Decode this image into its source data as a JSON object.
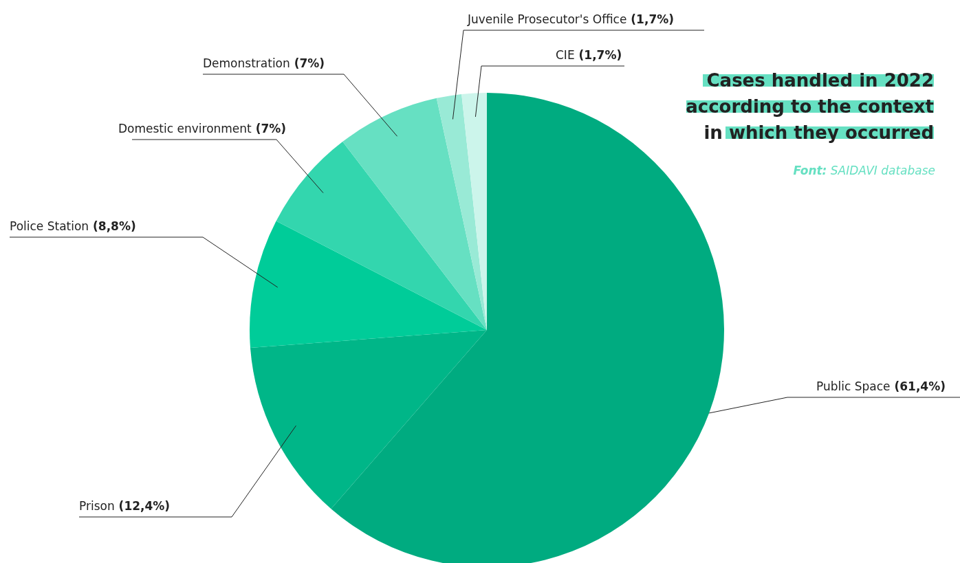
{
  "chart_data": {
    "type": "pie",
    "title": "Cases handled in 2022\naccording to the context\nin which they occurred",
    "categories": [
      "Public Space",
      "Prison",
      "Police Station",
      "Domestic environment",
      "Demonstration",
      "Juvenile Prosecutor's Office",
      "CIE"
    ],
    "values": [
      61.4,
      12.4,
      8.8,
      7,
      7,
      1.7,
      1.7
    ],
    "value_labels": [
      "(61,4%)",
      "(12,4%)",
      "(8,8%)",
      "(7%)",
      "(7%)",
      "(1,7%)",
      "(1,7%)"
    ],
    "colors": [
      "#00ab80",
      "#00b688",
      "#00cc99",
      "#33d6ae",
      "#66e0c2",
      "#99ead6",
      "#ccf5eb"
    ],
    "annotations": [
      "Font: SAIDAVI database"
    ]
  }
}
